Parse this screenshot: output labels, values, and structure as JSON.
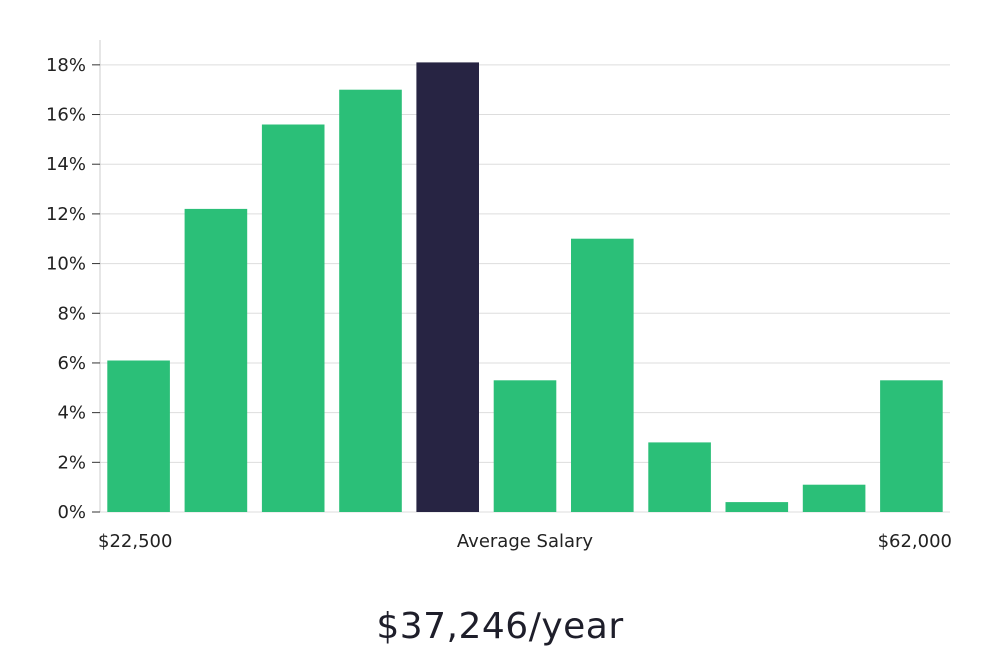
{
  "chart_data": {
    "type": "bar",
    "title": "",
    "xlabel": "Average Salary",
    "ylabel": "",
    "x_start_label": "$22,500",
    "x_end_label": "$62,000",
    "ylim": [
      0,
      19
    ],
    "yticks": [
      0,
      2,
      4,
      6,
      8,
      10,
      12,
      14,
      16,
      18
    ],
    "ytick_labels": [
      "0%",
      "2%",
      "4%",
      "6%",
      "8%",
      "10%",
      "12%",
      "14%",
      "16%",
      "18%"
    ],
    "values": [
      6.1,
      12.2,
      15.6,
      17.0,
      18.1,
      5.3,
      11.0,
      2.8,
      0.4,
      1.1,
      5.3
    ],
    "highlight_index": 4,
    "grid": true,
    "colors": {
      "bar": "#2bbf78",
      "highlight": "#272443",
      "grid": "#dddddd",
      "axis": "#cccccc"
    }
  },
  "salary": {
    "value": "$37,246/year"
  }
}
